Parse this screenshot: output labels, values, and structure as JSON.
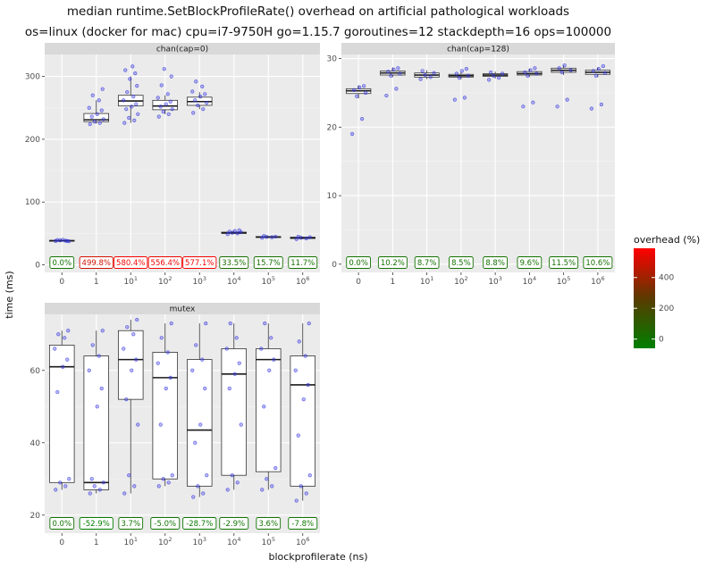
{
  "title_line1": "median runtime.SetBlockProfileRate() overhead on artificial pathological workloads",
  "title_line2": "os=linux (docker for mac) cpu=i7-9750H go=1.15.7 goroutines=12 stackdepth=16 ops=100000",
  "chart_data": {
    "type": "boxplot",
    "xlabel": "blockprofilerate (ns)",
    "ylabel": "time (ms)",
    "categories": [
      "0",
      "1",
      "10^1",
      "10^2",
      "10^3",
      "10^4",
      "10^5",
      "10^6"
    ],
    "legend": {
      "title": "overhead (%)",
      "ticks": [
        0,
        200,
        400
      ],
      "range": [
        -60,
        590
      ],
      "low_color": "#008000",
      "mid_color": "#5a3a00",
      "high_color": "#ff0000"
    },
    "panels": [
      {
        "strip": "chan(cap=0)",
        "ylim": [
          -12,
          335
        ],
        "yticks": [
          0,
          100,
          200,
          300
        ],
        "overhead_labels": [
          "0.0%",
          "499.8%",
          "580.4%",
          "556.4%",
          "577.1%",
          "33.5%",
          "15.7%",
          "11.7%"
        ],
        "overhead_values": [
          0.0,
          499.8,
          580.4,
          556.4,
          577.1,
          33.5,
          15.7,
          11.7
        ],
        "boxes": [
          {
            "min": 37,
            "q1": 38,
            "median": 38.5,
            "q3": 39,
            "max": 40
          },
          {
            "min": 225,
            "q1": 228,
            "median": 231,
            "q3": 241,
            "max": 262
          },
          {
            "min": 226,
            "q1": 253,
            "median": 261,
            "q3": 270,
            "max": 300
          },
          {
            "min": 240,
            "q1": 247,
            "median": 253,
            "q3": 262,
            "max": 270
          },
          {
            "min": 248,
            "q1": 254,
            "median": 260,
            "q3": 267,
            "max": 275
          },
          {
            "min": 49,
            "q1": 50,
            "median": 51,
            "q3": 52,
            "max": 54
          },
          {
            "min": 43,
            "q1": 44,
            "median": 44.5,
            "q3": 45,
            "max": 46
          },
          {
            "min": 41,
            "q1": 42,
            "median": 43,
            "q3": 44,
            "max": 45
          }
        ],
        "points": [
          [
            38,
            38.5,
            39,
            37.5,
            39.5,
            40,
            38
          ],
          [
            224,
            226,
            228,
            232,
            236,
            240,
            246,
            250,
            262,
            270,
            280
          ],
          [
            226,
            230,
            234,
            240,
            248,
            252,
            256,
            262,
            268,
            275,
            285,
            296,
            305,
            310,
            316
          ],
          [
            236,
            240,
            244,
            248,
            252,
            256,
            260,
            266,
            272,
            286,
            300,
            312
          ],
          [
            242,
            248,
            254,
            258,
            262,
            268,
            272,
            276,
            284,
            292
          ],
          [
            49,
            50,
            51,
            52,
            53,
            54,
            55
          ],
          [
            43,
            44,
            44.5,
            45,
            46
          ],
          [
            41,
            42,
            43,
            44,
            45
          ]
        ]
      },
      {
        "strip": "chan(cap=128)",
        "ylim": [
          -1.2,
          30.6
        ],
        "yticks": [
          0,
          10,
          20,
          30
        ],
        "overhead_labels": [
          "0.0%",
          "10.2%",
          "8.7%",
          "8.5%",
          "8.8%",
          "9.6%",
          "11.5%",
          "10.6%"
        ],
        "overhead_values": [
          0.0,
          10.2,
          8.7,
          8.5,
          8.8,
          9.6,
          11.5,
          10.6
        ],
        "boxes": [
          {
            "min": 24.2,
            "q1": 24.9,
            "median": 25.3,
            "q3": 25.6,
            "max": 26.1
          },
          {
            "min": 27.3,
            "q1": 27.6,
            "median": 27.9,
            "q3": 28.2,
            "max": 28.7
          },
          {
            "min": 27.0,
            "q1": 27.3,
            "median": 27.6,
            "q3": 27.9,
            "max": 28.3
          },
          {
            "min": 27.0,
            "q1": 27.3,
            "median": 27.5,
            "q3": 27.7,
            "max": 28.0
          },
          {
            "min": 27.1,
            "q1": 27.4,
            "median": 27.6,
            "q3": 27.8,
            "max": 28.1
          },
          {
            "min": 27.3,
            "q1": 27.6,
            "median": 27.8,
            "q3": 28.1,
            "max": 28.5
          },
          {
            "min": 27.6,
            "q1": 28.0,
            "median": 28.3,
            "q3": 28.6,
            "max": 29.0
          },
          {
            "min": 27.3,
            "q1": 27.7,
            "median": 28.0,
            "q3": 28.3,
            "max": 28.7
          }
        ],
        "points": [
          [
            19.0,
            21.2,
            24.5,
            25.0,
            25.4,
            25.8,
            26.0
          ],
          [
            24.6,
            25.6,
            27.5,
            27.8,
            28.1,
            28.4,
            28.6
          ],
          [
            27.0,
            27.3,
            27.6,
            27.9,
            28.2
          ],
          [
            24.0,
            24.3,
            27.2,
            27.5,
            27.8,
            28.2,
            28.5
          ],
          [
            26.9,
            27.2,
            27.5,
            27.8,
            28.0
          ],
          [
            23.0,
            23.6,
            27.5,
            27.8,
            28.0,
            28.3,
            28.6
          ],
          [
            23.0,
            24.0,
            28.0,
            28.3,
            28.6,
            29.0
          ],
          [
            22.7,
            23.3,
            27.5,
            27.9,
            28.2,
            28.5,
            28.9
          ]
        ]
      },
      {
        "strip": "mutex",
        "ylim": [
          15,
          75.5
        ],
        "yticks": [
          20,
          40,
          60
        ],
        "overhead_labels": [
          "0.0%",
          "-52.9%",
          "3.7%",
          "-5.0%",
          "-28.7%",
          "-2.9%",
          "3.6%",
          "-7.8%"
        ],
        "overhead_values": [
          0.0,
          -52.9,
          3.7,
          -5.0,
          -28.7,
          -2.9,
          3.6,
          -7.8
        ],
        "boxes": [
          {
            "min": 27,
            "q1": 29,
            "median": 61,
            "q3": 67,
            "max": 71
          },
          {
            "min": 26,
            "q1": 27,
            "median": 29,
            "q3": 64,
            "max": 71
          },
          {
            "min": 26,
            "q1": 52,
            "median": 63,
            "q3": 71,
            "max": 74
          },
          {
            "min": 28,
            "q1": 30,
            "median": 58,
            "q3": 65,
            "max": 73
          },
          {
            "min": 25,
            "q1": 28,
            "median": 43.5,
            "q3": 63,
            "max": 73
          },
          {
            "min": 27,
            "q1": 31,
            "median": 59,
            "q3": 66,
            "max": 73
          },
          {
            "min": 27,
            "q1": 32,
            "median": 63,
            "q3": 66,
            "max": 73
          },
          {
            "min": 24,
            "q1": 28,
            "median": 56,
            "q3": 64,
            "max": 73
          }
        ],
        "points": [
          [
            27,
            28,
            29,
            30,
            54,
            61,
            63,
            66,
            69,
            70,
            71
          ],
          [
            26,
            27,
            28,
            29,
            30,
            50,
            55,
            60,
            64,
            67,
            71
          ],
          [
            26,
            28,
            31,
            45,
            52,
            60,
            63,
            66,
            70,
            72,
            74
          ],
          [
            28,
            29,
            30,
            31,
            45,
            55,
            58,
            62,
            65,
            69,
            73
          ],
          [
            25,
            26,
            28,
            31,
            40,
            45,
            55,
            60,
            63,
            67,
            73
          ],
          [
            27,
            29,
            31,
            45,
            55,
            59,
            62,
            66,
            69,
            73
          ],
          [
            27,
            28,
            30,
            33,
            50,
            60,
            63,
            66,
            69,
            73
          ],
          [
            24,
            26,
            28,
            31,
            42,
            52,
            56,
            60,
            64,
            68,
            73
          ]
        ]
      }
    ]
  }
}
